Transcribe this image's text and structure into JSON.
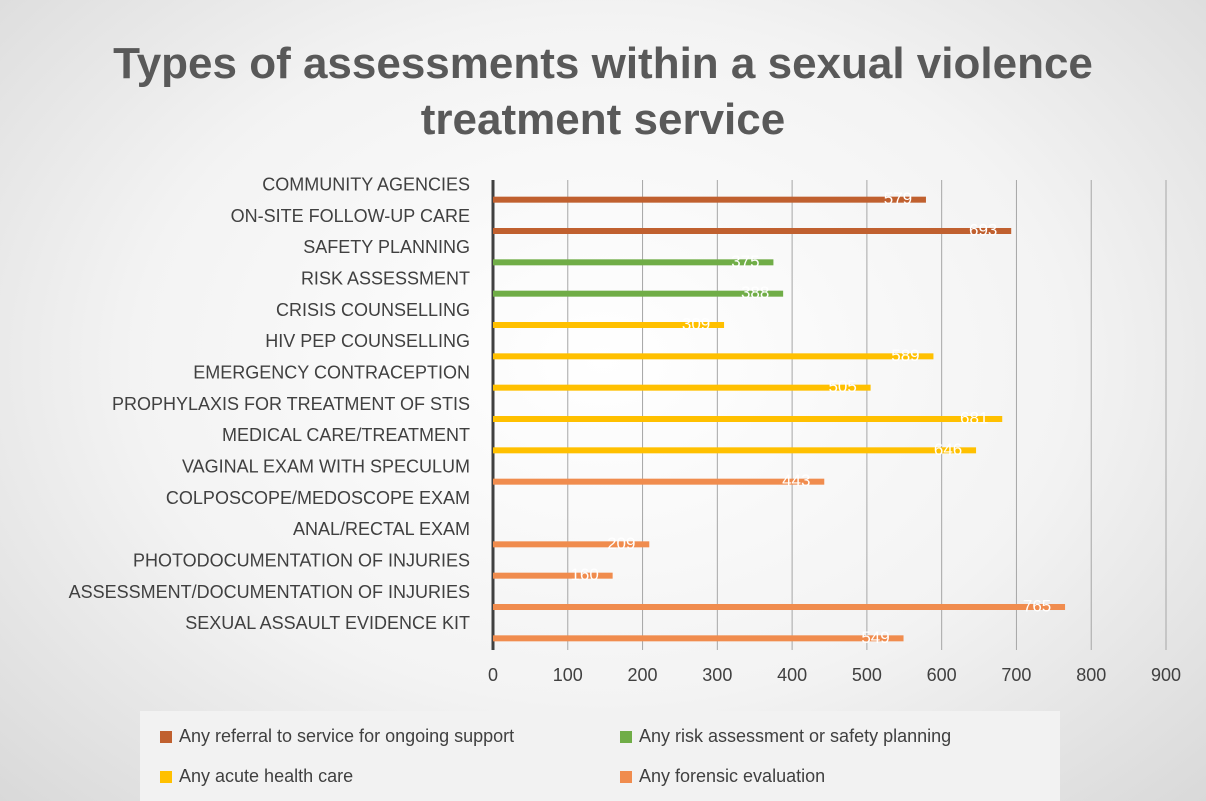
{
  "chart_data": {
    "type": "bar",
    "orientation": "horizontal",
    "title": "Types of assessments within a sexual violence treatment service",
    "categories": [
      "COMMUNITY AGENCIES",
      "ON-SITE FOLLOW-UP CARE",
      "SAFETY PLANNING",
      "RISK ASSESSMENT",
      "CRISIS COUNSELLING",
      "HIV PEP COUNSELLING",
      "EMERGENCY CONTRACEPTION",
      "PROPHYLAXIS FOR TREATMENT OF STIS",
      "MEDICAL CARE/TREATMENT",
      "VAGINAL EXAM WITH SPECULUM",
      "COLPOSCOPE/MEDOSCOPE EXAM",
      "ANAL/RECTAL EXAM",
      "PHOTODOCUMENTATION OF INJURIES",
      "ASSESSMENT/DOCUMENTATION OF INJURIES",
      "SEXUAL ASSAULT EVIDENCE KIT"
    ],
    "series": [
      {
        "name": "Any referral to service for ongoing support",
        "color": "#c0602f",
        "values": [
          579,
          693,
          null,
          null,
          null,
          null,
          null,
          null,
          null,
          null,
          null,
          null,
          null,
          null,
          null
        ]
      },
      {
        "name": "Any risk assessment or safety planning",
        "color": "#70ad47",
        "values": [
          null,
          null,
          375,
          388,
          null,
          null,
          null,
          null,
          null,
          null,
          null,
          null,
          null,
          null,
          null
        ]
      },
      {
        "name": "Any acute health care",
        "color": "#ffc000",
        "values": [
          null,
          null,
          null,
          null,
          309,
          589,
          505,
          681,
          646,
          null,
          null,
          null,
          null,
          null,
          null
        ]
      },
      {
        "name": "Any forensic evaluation",
        "color": "#f08c4e",
        "values": [
          null,
          null,
          null,
          null,
          null,
          null,
          null,
          null,
          null,
          443,
          null,
          209,
          160,
          765,
          549
        ]
      }
    ],
    "xlim": [
      0,
      900
    ],
    "xticks": [
      0,
      100,
      200,
      300,
      400,
      500,
      600,
      700,
      800,
      900
    ],
    "grid": true,
    "legend": "bottom"
  }
}
